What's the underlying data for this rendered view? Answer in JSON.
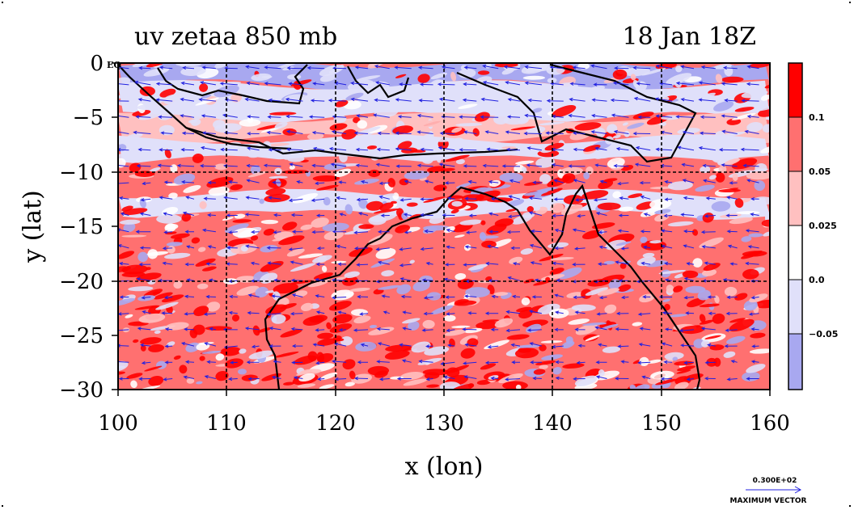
{
  "chart_data": {
    "type": "contour-map",
    "title_left": "uv zetaa 850 mb",
    "title_right": "18 Jan 18Z",
    "xlabel": "x (lon)",
    "ylabel": "y (lat)",
    "xlim": [
      100,
      160
    ],
    "ylim": [
      -30,
      0
    ],
    "x_ticks": [
      100,
      110,
      120,
      130,
      140,
      150,
      160
    ],
    "y_ticks": [
      0,
      -5,
      -10,
      -15,
      -20,
      -25,
      -30
    ],
    "y_tick_labels": [
      "0",
      "−5",
      "−10",
      "−15",
      "−20",
      "−25",
      "−30"
    ],
    "equator_label": "EQ",
    "gridlines": [
      110,
      120,
      130,
      140,
      150
    ],
    "grid_lat": [
      -10,
      -20
    ],
    "colorbar": {
      "levels": [
        "0.1",
        "0.05",
        "0.025",
        "0.0",
        "−0.05"
      ],
      "colors": [
        "#ff0000",
        "#ff7070",
        "#ffc0c0",
        "#ffffff",
        "#e0e0fa",
        "#a8a8f0"
      ]
    },
    "vector_key": {
      "magnitude": "0.300E+02",
      "label": "MAXIMUM VECTOR"
    },
    "vorticity_bands": [
      {
        "lat": [
          0,
          -2
        ],
        "level": "neg_strong"
      },
      {
        "lat": [
          -2,
          -5
        ],
        "level": "neg_weak"
      },
      {
        "lat": [
          -5,
          -7
        ],
        "level": "pos_mixed"
      },
      {
        "lat": [
          -7,
          -9
        ],
        "level": "neg_weak"
      },
      {
        "lat": [
          -9,
          -12
        ],
        "level": "pos_strong"
      },
      {
        "lat": [
          -12,
          -14
        ],
        "level": "neg_weak"
      },
      {
        "lat": [
          -14,
          -30
        ],
        "level": "pos_strong"
      }
    ],
    "colors": {
      "red_strong": "#ff0000",
      "red_mid": "#ff7070",
      "red_light": "#ffc0c0",
      "blue_light": "#e0e0fa",
      "blue_mid": "#a8a8f0",
      "vector": "#2020e0",
      "coast": "#000000"
    }
  }
}
